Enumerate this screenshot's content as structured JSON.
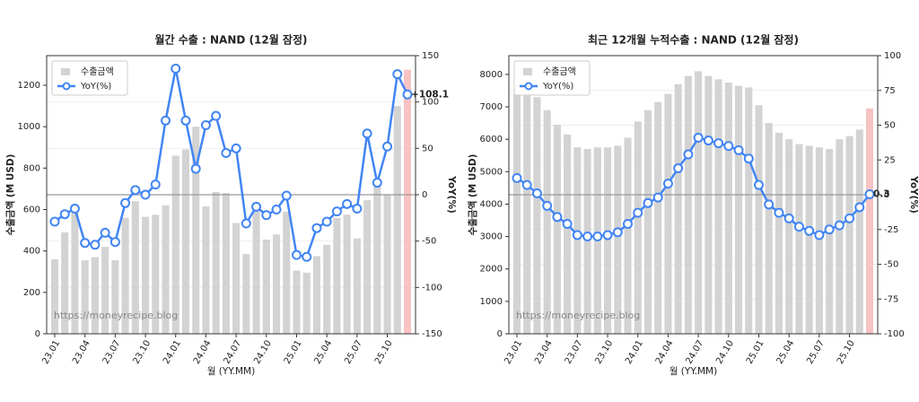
{
  "chart_data": [
    {
      "type": "bar_line",
      "title": "월간 수출 : NAND (12월 잠정)",
      "watermark": "https://moneyrecipe.blog",
      "x_label": "월 (YY.MM)",
      "y_label": "수출금액 (M USD)",
      "y2_label": "YoY(%)",
      "categories": [
        "23.01",
        null,
        null,
        "23.04",
        null,
        null,
        "23.07",
        null,
        null,
        "23.10",
        null,
        null,
        "24.01",
        null,
        null,
        "24.04",
        null,
        null,
        "24.07",
        null,
        null,
        "24.10",
        null,
        null,
        "25.01",
        null,
        null,
        "25.04",
        null,
        null,
        "25.07",
        null,
        null,
        "25.10",
        null,
        null
      ],
      "series": [
        {
          "name": "수출금액",
          "color": "#d3d3d3",
          "highlight_color": "#f7c3c3",
          "values": [
            360,
            490,
            625,
            355,
            370,
            420,
            355,
            560,
            640,
            565,
            575,
            620,
            860,
            890,
            1000,
            615,
            685,
            680,
            535,
            385,
            590,
            455,
            480,
            590,
            305,
            295,
            375,
            430,
            560,
            575,
            460,
            645,
            720,
            670,
            1100,
            1275
          ]
        },
        {
          "name": "YoY(%)",
          "color": "#4285f4",
          "axis": "y2",
          "label_color": "#e02020",
          "values": [
            -29,
            -21,
            -15,
            -52,
            -54,
            -41,
            -51,
            -9,
            5,
            0,
            11,
            80,
            136,
            80,
            28,
            75,
            85,
            45,
            50,
            -31,
            -13,
            -22,
            -16,
            -1,
            -65,
            -67,
            -36,
            -29,
            -18,
            -10,
            -15,
            66,
            13,
            52,
            130,
            108.1
          ],
          "value_labels": [
            null,
            null,
            null,
            null,
            null,
            null,
            null,
            null,
            null,
            null,
            null,
            null,
            null,
            null,
            null,
            null,
            null,
            null,
            null,
            null,
            null,
            null,
            null,
            null,
            null,
            null,
            null,
            null,
            null,
            null,
            null,
            null,
            null,
            null,
            null,
            "+108.1"
          ]
        }
      ],
      "ylim": [
        0,
        1343
      ],
      "yticks": [
        0,
        200,
        400,
        600,
        800,
        1000,
        1200
      ],
      "y2lim": [
        -150,
        150
      ],
      "y2ticks": [
        -150,
        -100,
        -50,
        0,
        50,
        100,
        150
      ],
      "grid": true,
      "legend": "upper left"
    },
    {
      "type": "bar_line",
      "title": "최근 12개월 누적수출 : NAND (12월 잠정)",
      "watermark": "https://moneyrecipe.blog",
      "x_label": "월 (YY.MM)",
      "y_label": "수출금액 (M USD)",
      "y2_label": "YoY(%)",
      "categories": [
        "23.01",
        null,
        null,
        "23.04",
        null,
        null,
        "23.07",
        null,
        null,
        "23.10",
        null,
        null,
        "24.01",
        null,
        null,
        "24.04",
        null,
        null,
        "24.07",
        null,
        null,
        "24.10",
        null,
        null,
        "25.01",
        null,
        null,
        "25.04",
        null,
        null,
        "25.07",
        null,
        null,
        "25.10",
        null,
        null
      ],
      "series": [
        {
          "name": "수출금액",
          "color": "#d3d3d3",
          "highlight_color": "#f7c3c3",
          "values": [
            7400,
            7350,
            7300,
            6900,
            6450,
            6150,
            5750,
            5700,
            5750,
            5750,
            5800,
            6050,
            6550,
            6900,
            7150,
            7400,
            7700,
            7950,
            8100,
            7950,
            7850,
            7750,
            7650,
            7600,
            7050,
            6500,
            6200,
            6000,
            5850,
            5800,
            5750,
            5700,
            6000,
            6100,
            6300,
            6950
          ]
        },
        {
          "name": "YoY(%)",
          "color": "#4285f4",
          "axis": "y2",
          "label_color": "#e02020",
          "values": [
            12,
            7,
            1,
            -8,
            -16,
            -21,
            -29,
            -30,
            -30,
            -29,
            -27,
            -21,
            -13,
            -6,
            -2,
            8,
            19,
            29,
            41,
            39,
            37,
            35,
            32,
            26,
            7,
            -7,
            -13,
            -17,
            -23,
            -26,
            -29,
            -25,
            -22,
            -17,
            -9,
            0.3
          ],
          "value_labels": [
            null,
            null,
            null,
            null,
            null,
            null,
            null,
            null,
            null,
            null,
            null,
            null,
            null,
            null,
            null,
            null,
            null,
            null,
            null,
            null,
            null,
            null,
            null,
            null,
            null,
            null,
            null,
            null,
            null,
            null,
            null,
            null,
            null,
            null,
            null,
            "0.3"
          ]
        }
      ],
      "ylim": [
        0,
        8580
      ],
      "yticks": [
        0,
        1000,
        2000,
        3000,
        4000,
        5000,
        6000,
        7000,
        8000
      ],
      "y2lim": [
        -100,
        100
      ],
      "y2ticks": [
        -100,
        -75,
        -50,
        -25,
        0,
        25,
        50,
        75,
        100
      ],
      "grid": true,
      "legend": "upper left"
    }
  ]
}
